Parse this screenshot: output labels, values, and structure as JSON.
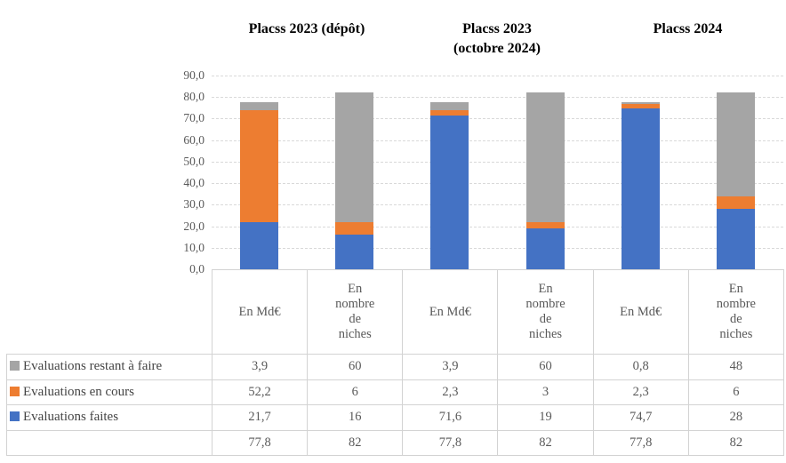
{
  "chart_data": {
    "type": "bar",
    "stacked": true,
    "title": "",
    "group_headers": [
      "Placss 2023 (dépôt)",
      "Placss 2023\n(octobre 2024)",
      "Placss 2024"
    ],
    "categories": [
      "En Md€",
      "En nombre de niches",
      "En Md€",
      "En nombre de niches",
      "En Md€",
      "En nombre de niches"
    ],
    "series": [
      {
        "name": "Evaluations faites",
        "color": "#4472C4",
        "values": [
          21.7,
          16,
          71.6,
          19,
          74.7,
          28
        ]
      },
      {
        "name": "Evaluations en cours",
        "color": "#ED7D31",
        "values": [
          52.2,
          6,
          2.3,
          3,
          2.3,
          6
        ]
      },
      {
        "name": "Evaluations restant à faire",
        "color": "#A5A5A5",
        "values": [
          3.9,
          60,
          3.9,
          60,
          0.8,
          48
        ]
      }
    ],
    "totals": [
      "77,8",
      "82",
      "77,8",
      "82",
      "77,8",
      "82"
    ],
    "ylim": [
      0,
      90
    ],
    "ytick_values": [
      90,
      80,
      70,
      60,
      50,
      40,
      30,
      20,
      10,
      0
    ],
    "ytick_labels": [
      "90,0",
      "80,0",
      "70,0",
      "60,0",
      "50,0",
      "40,0",
      "30,0",
      "20,0",
      "10,0",
      "0,0"
    ],
    "grid": "horizontal-dashed",
    "legend_position": "table-row-labels"
  },
  "table": {
    "column_headers": [
      "En Md€",
      "En\nnombre\nde\nniches",
      "En Md€",
      "En\nnombre\nde\nniches",
      "En Md€",
      "En\nnombre\nde\nniches"
    ],
    "rows": [
      {
        "label": "Evaluations restant à faire",
        "swatch_color": "#A5A5A5",
        "values": [
          "3,9",
          "60",
          "3,9",
          "60",
          "0,8",
          "48"
        ]
      },
      {
        "label": "Evaluations en cours",
        "swatch_color": "#ED7D31",
        "values": [
          "52,2",
          "6",
          "2,3",
          "3",
          "2,3",
          "6"
        ]
      },
      {
        "label": "Evaluations faites",
        "swatch_color": "#4472C4",
        "values": [
          "21,7",
          "16",
          "71,6",
          "19",
          "74,7",
          "28"
        ]
      },
      {
        "label": "",
        "swatch_color": null,
        "values": [
          "77,8",
          "82",
          "77,8",
          "82",
          "77,8",
          "82"
        ]
      }
    ],
    "colors": {
      "border": "#d3d3d3",
      "text": "#595959"
    }
  }
}
